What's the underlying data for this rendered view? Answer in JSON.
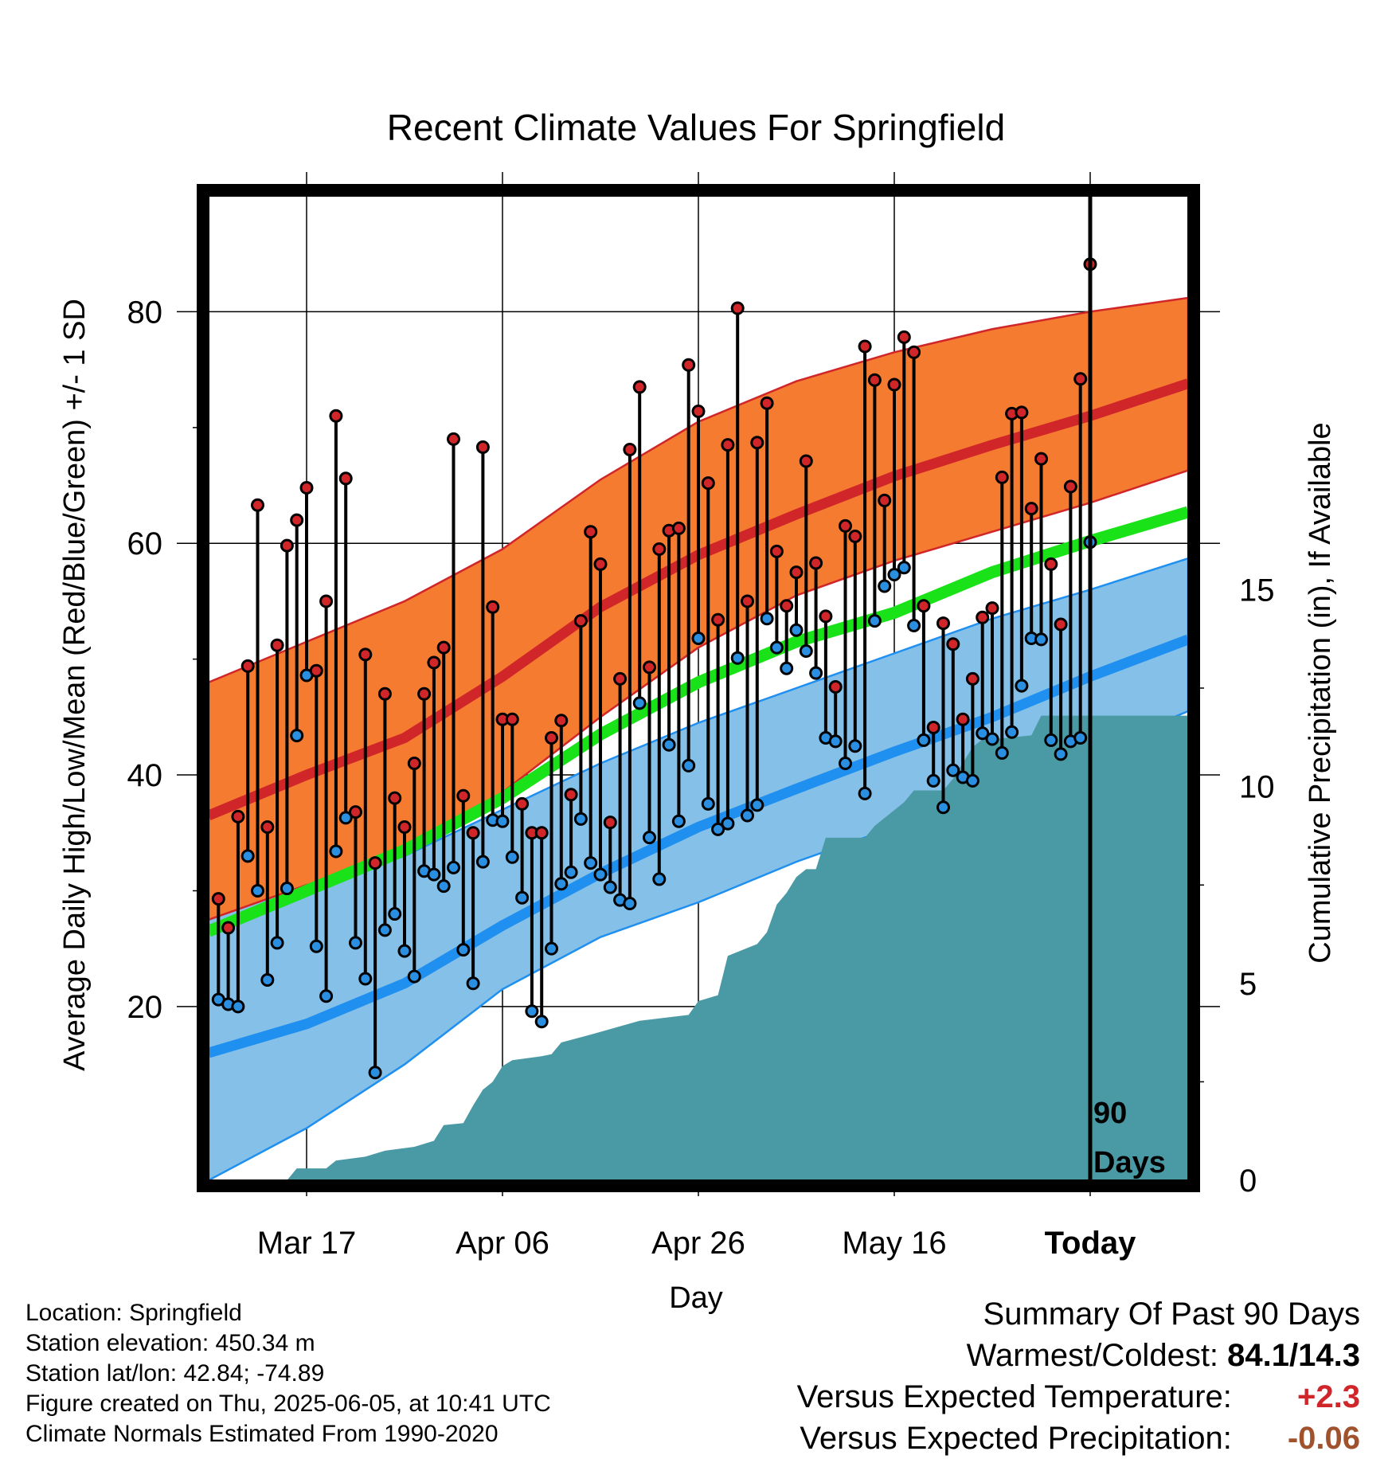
{
  "meta": {
    "location": "Location: Springfield",
    "elevation": "Station elevation: 450.34 m",
    "latlon": "Station lat/lon: 42.84; -74.89",
    "created": "Figure created on Thu, 2025-06-05, at 10:41 UTC",
    "normals": "Climate Normals Estimated From 1990-2020"
  },
  "summary": {
    "heading": "Summary Of Past 90 Days",
    "warmest_label": "Warmest/Coldest:",
    "warmest_value": "84.1/14.3",
    "temp_label": "Versus Expected Temperature:",
    "temp_value": "+2.3",
    "precip_label": "Versus Expected Precipitation:",
    "precip_value": "-0.06"
  },
  "colors": {
    "normal_high_band": "#f47b30",
    "normal_high_line": "#d0262a",
    "normal_low_band": "#85c0e8",
    "normal_low_line": "#1f8ff0",
    "normal_mean_line": "#19e219",
    "precip_fill": "#4a9aa5",
    "high_dot": "#d0262a",
    "low_dot": "#2a8fe0",
    "temp_anomaly": "#d0262a",
    "precip_anomaly": "#a0522d"
  },
  "chart_data": {
    "type": "line",
    "title": "Recent Climate Values For Springfield",
    "xlabel": "Day",
    "ylabel": "Average Daily High/Low/Mean (Red/Blue/Green) +/- 1 SD",
    "y2label": "Cumulative Precipitation (in), If Available",
    "x_tick_labels": [
      "Mar 17",
      "Apr 06",
      "Apr 26",
      "May 16",
      "Today"
    ],
    "x_tick_days": [
      10,
      30,
      50,
      70,
      90
    ],
    "today_marker_label": "90 Days",
    "xlim": [
      0,
      100
    ],
    "ylim": [
      5,
      90
    ],
    "yticks": [
      20,
      40,
      60,
      80
    ],
    "y2lim": [
      0,
      25
    ],
    "y2ticks": [
      0,
      5,
      10,
      15
    ],
    "grid": true,
    "normal_high_mean": [
      [
        0,
        36.5
      ],
      [
        10,
        40
      ],
      [
        20,
        43.2
      ],
      [
        30,
        48.5
      ],
      [
        40,
        54.5
      ],
      [
        50,
        59
      ],
      [
        60,
        62.5
      ],
      [
        70,
        65.8
      ],
      [
        80,
        68.5
      ],
      [
        90,
        71
      ],
      [
        100,
        73.8
      ]
    ],
    "normal_high_upper": [
      [
        0,
        48
      ],
      [
        10,
        51.5
      ],
      [
        20,
        55
      ],
      [
        30,
        59.5
      ],
      [
        40,
        65.5
      ],
      [
        50,
        70.5
      ],
      [
        60,
        74
      ],
      [
        70,
        76.5
      ],
      [
        80,
        78.5
      ],
      [
        90,
        80
      ],
      [
        100,
        81.2
      ]
    ],
    "normal_high_lower": [
      [
        0,
        27.5
      ],
      [
        10,
        30.5
      ],
      [
        20,
        33
      ],
      [
        30,
        38.5
      ],
      [
        40,
        45
      ],
      [
        50,
        51
      ],
      [
        60,
        55.5
      ],
      [
        70,
        58.5
      ],
      [
        80,
        61
      ],
      [
        90,
        63.5
      ],
      [
        100,
        66.3
      ]
    ],
    "normal_low_mean": [
      [
        0,
        16
      ],
      [
        10,
        18.5
      ],
      [
        20,
        22
      ],
      [
        30,
        27
      ],
      [
        40,
        31.5
      ],
      [
        50,
        35.5
      ],
      [
        60,
        38.8
      ],
      [
        70,
        42
      ],
      [
        80,
        45
      ],
      [
        90,
        48.5
      ],
      [
        100,
        51.7
      ]
    ],
    "normal_low_upper": [
      [
        0,
        28
      ],
      [
        10,
        30.5
      ],
      [
        20,
        33
      ],
      [
        30,
        37
      ],
      [
        40,
        41
      ],
      [
        50,
        44.5
      ],
      [
        60,
        47.5
      ],
      [
        70,
        50.5
      ],
      [
        80,
        53.5
      ],
      [
        90,
        56
      ],
      [
        100,
        58.7
      ]
    ],
    "normal_low_lower": [
      [
        0,
        5
      ],
      [
        10,
        9.5
      ],
      [
        20,
        15
      ],
      [
        30,
        21.5
      ],
      [
        40,
        26
      ],
      [
        50,
        29
      ],
      [
        60,
        32.5
      ],
      [
        70,
        35.5
      ],
      [
        80,
        38.5
      ],
      [
        90,
        42
      ],
      [
        100,
        45.5
      ]
    ],
    "normal_mean": [
      [
        0,
        26.5
      ],
      [
        10,
        30
      ],
      [
        20,
        33.5
      ],
      [
        30,
        38
      ],
      [
        40,
        43.5
      ],
      [
        50,
        48
      ],
      [
        60,
        51.5
      ],
      [
        70,
        54
      ],
      [
        80,
        57.5
      ],
      [
        90,
        60.2
      ],
      [
        100,
        62.7
      ]
    ],
    "daily_high": [
      29.3,
      26.8,
      36.4,
      49.4,
      63.3,
      35.5,
      51.2,
      59.8,
      62,
      64.8,
      49,
      55,
      71,
      65.6,
      36.8,
      50.4,
      32.4,
      47,
      38,
      35.5,
      41,
      47,
      49.7,
      51,
      69,
      38.2,
      35,
      68.3,
      54.5,
      44.8,
      44.8,
      37.5,
      35,
      35,
      43.2,
      44.7,
      38.3,
      53.3,
      61,
      58.2,
      35.9,
      48.3,
      68.1,
      73.5,
      49.3,
      59.5,
      61.1,
      61.3,
      75.4,
      71.4,
      65.2,
      53.4,
      68.5,
      80.3,
      55,
      68.7,
      72.1,
      59.3,
      54.6,
      57.5,
      67.1,
      58.3,
      53.7,
      47.6,
      61.5,
      60.6,
      77,
      74.1,
      63.7,
      73.7,
      77.8,
      76.5,
      54.6,
      44.1,
      53.1,
      51.3,
      44.8,
      48.3,
      53.6,
      54.4,
      65.7,
      71.2,
      71.3,
      63,
      67.3,
      58.2,
      53,
      64.9,
      74.2,
      84.1
    ],
    "daily_low": [
      20.6,
      20.2,
      20,
      33,
      30,
      22.3,
      25.5,
      30.2,
      43.4,
      48.6,
      25.2,
      20.9,
      33.4,
      36.3,
      25.5,
      22.4,
      14.3,
      26.6,
      28,
      24.8,
      22.6,
      31.7,
      31.4,
      30.4,
      32,
      24.9,
      22,
      32.5,
      36.1,
      36,
      32.9,
      29.4,
      19.6,
      18.7,
      25,
      30.6,
      31.6,
      36.2,
      32.4,
      31.4,
      30.3,
      29.2,
      28.9,
      46.2,
      34.6,
      31,
      42.6,
      36,
      40.8,
      51.8,
      37.5,
      35.3,
      35.8,
      50.1,
      36.5,
      37.4,
      53.5,
      51,
      49.2,
      52.5,
      50.7,
      48.8,
      43.2,
      42.9,
      41,
      42.5,
      38.4,
      53.3,
      56.3,
      57.3,
      57.9,
      52.9,
      43,
      39.5,
      37.2,
      40.4,
      39.8,
      39.5,
      43.6,
      43.1,
      41.9,
      43.7,
      47.7,
      51.8,
      51.7,
      43,
      41.8,
      42.9,
      43.2,
      60.1
    ],
    "cumulative_precip": [
      [
        0,
        0
      ],
      [
        8,
        0
      ],
      [
        9,
        0.3
      ],
      [
        12,
        0.3
      ],
      [
        13,
        0.5
      ],
      [
        16,
        0.6
      ],
      [
        18,
        0.75
      ],
      [
        21,
        0.85
      ],
      [
        23,
        1.0
      ],
      [
        24,
        1.4
      ],
      [
        26,
        1.45
      ],
      [
        27,
        1.9
      ],
      [
        28,
        2.3
      ],
      [
        29,
        2.5
      ],
      [
        30,
        2.9
      ],
      [
        31,
        3.05
      ],
      [
        34,
        3.15
      ],
      [
        35,
        3.2
      ],
      [
        36,
        3.5
      ],
      [
        39,
        3.7
      ],
      [
        44,
        4.05
      ],
      [
        49,
        4.2
      ],
      [
        50,
        4.55
      ],
      [
        52,
        4.7
      ],
      [
        53,
        5.7
      ],
      [
        56,
        6.0
      ],
      [
        57,
        6.3
      ],
      [
        58,
        7.0
      ],
      [
        59,
        7.3
      ],
      [
        60,
        7.7
      ],
      [
        61,
        7.9
      ],
      [
        62,
        7.9
      ],
      [
        63,
        8.7
      ],
      [
        67,
        8.7
      ],
      [
        68,
        9.0
      ],
      [
        69,
        9.2
      ],
      [
        70,
        9.4
      ],
      [
        71,
        9.6
      ],
      [
        72,
        9.9
      ],
      [
        75,
        9.9
      ],
      [
        76,
        10.2
      ],
      [
        77,
        10.6
      ],
      [
        78,
        11.0
      ],
      [
        79,
        11.2
      ],
      [
        80,
        11.2
      ],
      [
        84,
        11.3
      ],
      [
        85,
        11.8
      ],
      [
        100,
        11.8
      ]
    ]
  }
}
